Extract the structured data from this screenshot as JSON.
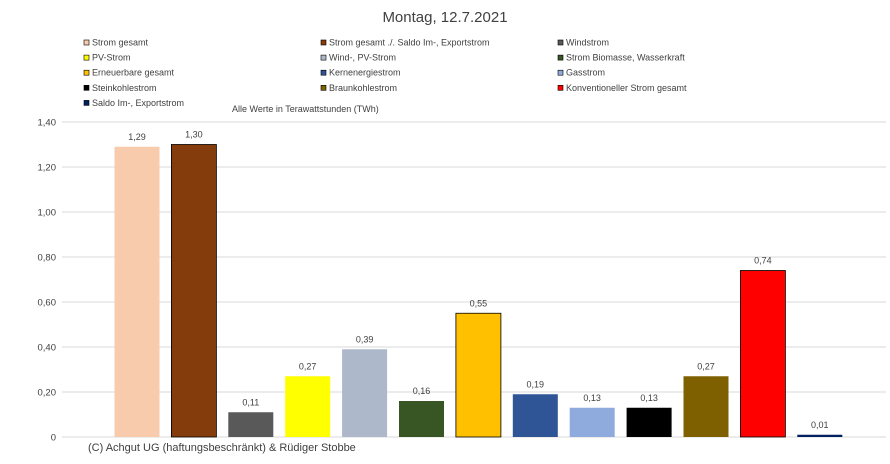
{
  "chart_data": {
    "type": "bar",
    "title": "Montag, 12.7.2021",
    "unit_note": "Alle Werte in Terawattstunden (TWh)",
    "copyright": "(C) Achgut UG (haftungsbeschränkt) & Rüdiger Stobbe",
    "ylim": [
      0,
      1.4
    ],
    "yticks": [
      "0",
      "0,20",
      "0,40",
      "0,60",
      "0,80",
      "1,00",
      "1,20",
      "1,40"
    ],
    "grid": true,
    "legend_position": "top",
    "series": [
      {
        "name": "Strom gesamt",
        "value": 1.29,
        "label": "1,29",
        "color": "#F8CBAD"
      },
      {
        "name": "Strom gesamt ./. Saldo Im-, Exportstrom",
        "value": 1.3,
        "label": "1,30",
        "color": "#843C0C"
      },
      {
        "name": "Windstrom",
        "value": 0.11,
        "label": "0,11",
        "color": "#595959"
      },
      {
        "name": "PV-Strom",
        "value": 0.27,
        "label": "0,27",
        "color": "#FFFF00"
      },
      {
        "name": "Wind-, PV-Strom",
        "value": 0.39,
        "label": "0,39",
        "color": "#ADB9CA"
      },
      {
        "name": "Strom Biomasse, Wasserkraft",
        "value": 0.16,
        "label": "0,16",
        "color": "#375623"
      },
      {
        "name": "Erneuerbare gesamt",
        "value": 0.55,
        "label": "0,55",
        "color": "#FFC000"
      },
      {
        "name": "Kernenergiestrom",
        "value": 0.19,
        "label": "0,19",
        "color": "#2F5597"
      },
      {
        "name": "Gasstrom",
        "value": 0.13,
        "label": "0,13",
        "color": "#8FAADC"
      },
      {
        "name": "Steinkohlestrom",
        "value": 0.13,
        "label": "0,13",
        "color": "#000000"
      },
      {
        "name": "Braunkohlestrom",
        "value": 0.27,
        "label": "0,27",
        "color": "#7F6000"
      },
      {
        "name": "Konventioneller Strom gesamt",
        "value": 0.74,
        "label": "0,74",
        "color": "#FF0000"
      },
      {
        "name": "Saldo Im-, Exportstrom",
        "value": 0.01,
        "label": "0,01",
        "color": "#002060"
      }
    ]
  }
}
